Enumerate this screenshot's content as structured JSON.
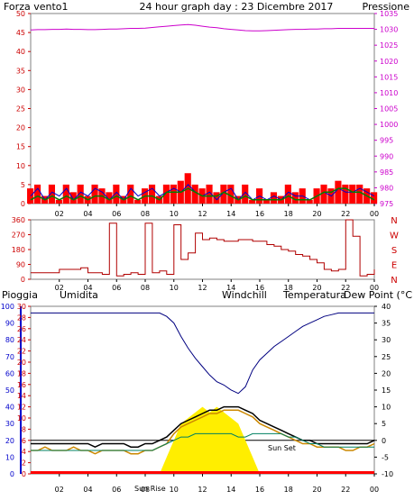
{
  "header": {
    "left_label": "Forza vento1",
    "title": "24 hour graph day : 23 Dicembre 2017",
    "right_label": "Pressione"
  },
  "colors": {
    "wind": "#ff0000",
    "gust": "#0000cc",
    "wind_avg": "#008000",
    "pressure": "#cc00cc",
    "direction": "#b00000",
    "axis_red": "#cc0000",
    "humidity": "#000080",
    "windchill": "#cc8800",
    "temperature": "#000000",
    "dewpoint": "#008060",
    "rain": "#ffee00",
    "rain_bar": "#ff0000",
    "frame": "#808080",
    "axis_blue": "#0000cc"
  },
  "x_ticks": [
    "02",
    "04",
    "06",
    "08",
    "10",
    "12",
    "14",
    "16",
    "18",
    "20",
    "22",
    "00"
  ],
  "chart_data": [
    {
      "type": "line",
      "name": "wind-pressure",
      "x_hours": [
        0,
        0.5,
        1,
        1.5,
        2,
        2.5,
        3,
        3.5,
        4,
        4.5,
        5,
        5.5,
        6,
        6.5,
        7,
        7.5,
        8,
        8.5,
        9,
        9.5,
        10,
        10.5,
        11,
        11.5,
        12,
        12.5,
        13,
        13.5,
        14,
        14.5,
        15,
        15.5,
        16,
        16.5,
        17,
        17.5,
        18,
        18.5,
        19,
        19.5,
        20,
        20.5,
        21,
        21.5,
        22,
        22.5,
        23,
        23.5,
        24
      ],
      "xticks": [
        "02",
        "04",
        "06",
        "08",
        "10",
        "12",
        "14",
        "16",
        "18",
        "20",
        "22",
        "00"
      ],
      "y_left": {
        "label": "Forza vento1",
        "min": 0,
        "max": 50,
        "ticks": [
          0,
          5,
          10,
          15,
          20,
          25,
          30,
          35,
          40,
          45,
          50
        ]
      },
      "y_right": {
        "label": "Pressione",
        "min": 975,
        "max": 1035,
        "ticks": [
          975,
          980,
          985,
          990,
          995,
          1000,
          1005,
          1010,
          1015,
          1020,
          1025,
          1030,
          1035
        ]
      },
      "series": [
        {
          "name": "wind",
          "values": [
            4,
            5,
            2,
            5,
            1,
            5,
            3,
            5,
            2,
            5,
            4,
            3,
            5,
            2,
            5,
            1,
            4,
            5,
            2,
            5,
            5,
            6,
            8,
            5,
            4,
            5,
            3,
            5,
            5,
            2,
            5,
            1,
            4,
            1,
            3,
            2,
            5,
            3,
            4,
            1,
            4,
            5,
            4,
            6,
            5,
            5,
            5,
            4,
            3
          ]
        },
        {
          "name": "gust",
          "values": [
            2,
            4,
            1,
            3,
            2,
            4,
            1,
            3,
            2,
            4,
            3,
            1,
            3,
            1,
            4,
            2,
            3,
            4,
            2,
            3,
            4,
            3,
            5,
            3,
            2,
            3,
            1,
            3,
            4,
            1,
            3,
            1,
            2,
            1,
            2,
            1,
            3,
            2,
            2,
            1,
            2,
            3,
            2,
            4,
            3,
            3,
            4,
            3,
            2
          ]
        },
        {
          "name": "wind_avg",
          "values": [
            1,
            2,
            1,
            2,
            1,
            2,
            1,
            2,
            1,
            2,
            2,
            1,
            2,
            1,
            2,
            1,
            2,
            2,
            1,
            3,
            3,
            3,
            4,
            3,
            2,
            2,
            2,
            3,
            2,
            1,
            2,
            1,
            1,
            1,
            1,
            1,
            2,
            1,
            1,
            1,
            2,
            3,
            3,
            4,
            4,
            3,
            3,
            2,
            1
          ]
        },
        {
          "name": "pressure",
          "values": [
            1029.8,
            1029.9,
            1029.9,
            1030.0,
            1030.0,
            1030.1,
            1030.0,
            1030.0,
            1029.9,
            1029.9,
            1030.0,
            1030.1,
            1030.1,
            1030.2,
            1030.3,
            1030.3,
            1030.4,
            1030.6,
            1030.8,
            1031.0,
            1031.2,
            1031.4,
            1031.5,
            1031.3,
            1031.0,
            1030.7,
            1030.5,
            1030.2,
            1030.0,
            1029.8,
            1029.6,
            1029.5,
            1029.5,
            1029.6,
            1029.7,
            1029.8,
            1029.9,
            1030.0,
            1030.0,
            1030.1,
            1030.1,
            1030.2,
            1030.2,
            1030.3,
            1030.3,
            1030.3,
            1030.3,
            1030.3,
            1030.3
          ]
        }
      ]
    },
    {
      "type": "line",
      "name": "wind-direction",
      "x_hours": [
        0,
        0.5,
        1,
        1.5,
        2,
        2.5,
        3,
        3.5,
        4,
        4.5,
        5,
        5.5,
        6,
        6.5,
        7,
        7.5,
        8,
        8.5,
        9,
        9.5,
        10,
        10.5,
        11,
        11.5,
        12,
        12.5,
        13,
        13.5,
        14,
        14.5,
        15,
        15.5,
        16,
        16.5,
        17,
        17.5,
        18,
        18.5,
        19,
        19.5,
        20,
        20.5,
        21,
        21.5,
        22,
        22.5,
        23,
        23.5,
        24
      ],
      "xticks": [
        "02",
        "04",
        "06",
        "08",
        "10",
        "12",
        "14",
        "16",
        "18",
        "20",
        "22",
        "00"
      ],
      "y_left": {
        "min": 0,
        "max": 360,
        "ticks": [
          0,
          90,
          180,
          270,
          360
        ]
      },
      "y_right_labels": [
        "N",
        "W",
        "S",
        "E",
        "N"
      ],
      "series": [
        {
          "name": "direction",
          "values": [
            40,
            40,
            40,
            40,
            60,
            60,
            60,
            70,
            40,
            40,
            30,
            340,
            20,
            30,
            40,
            30,
            340,
            40,
            50,
            30,
            330,
            120,
            160,
            280,
            240,
            250,
            240,
            230,
            230,
            240,
            240,
            230,
            230,
            210,
            200,
            180,
            170,
            150,
            140,
            120,
            100,
            60,
            50,
            60,
            360,
            260,
            20,
            30,
            60
          ]
        }
      ]
    },
    {
      "type": "line",
      "name": "temperature-humidity-rain",
      "x_hours": [
        0,
        0.5,
        1,
        1.5,
        2,
        2.5,
        3,
        3.5,
        4,
        4.5,
        5,
        5.5,
        6,
        6.5,
        7,
        7.5,
        8,
        8.5,
        9,
        9.5,
        10,
        10.5,
        11,
        11.5,
        12,
        12.5,
        13,
        13.5,
        14,
        14.5,
        15,
        15.5,
        16,
        16.5,
        17,
        17.5,
        18,
        18.5,
        19,
        19.5,
        20,
        20.5,
        21,
        21.5,
        22,
        22.5,
        23,
        23.5,
        24
      ],
      "xticks": [
        "02",
        "04",
        "06",
        "08",
        "10",
        "12",
        "14",
        "16",
        "18",
        "20",
        "22",
        "00"
      ],
      "legend": [
        "Pioggia",
        "Umidita",
        "Windchill",
        "Temperatura",
        "Dew Point (°C"
      ],
      "annotations": [
        "Sun Set",
        "Sun Rise"
      ],
      "y_left_rain": {
        "label": "Pioggia",
        "min": 0,
        "max": 30,
        "ticks": [
          0,
          2,
          4,
          6,
          8,
          10,
          12,
          14,
          16,
          18,
          20,
          22,
          24,
          26,
          28,
          30
        ]
      },
      "y_left_humidity": {
        "label": "Umidita",
        "min": 0,
        "max": 100,
        "ticks": [
          0,
          10,
          20,
          30,
          40,
          50,
          60,
          70,
          80,
          90,
          100
        ]
      },
      "y_right": {
        "label": "Dew Point (°C",
        "min": -10,
        "max": 40,
        "ticks": [
          -10,
          -5,
          0,
          5,
          10,
          15,
          20,
          25,
          30,
          35,
          40
        ]
      },
      "series": [
        {
          "name": "Umidita",
          "values": [
            96,
            96,
            96,
            96,
            96,
            96,
            96,
            96,
            96,
            96,
            96,
            96,
            96,
            96,
            96,
            96,
            96,
            96,
            96,
            94,
            90,
            82,
            75,
            69,
            64,
            59,
            55,
            53,
            50,
            48,
            52,
            62,
            68,
            72,
            76,
            79,
            82,
            85,
            88,
            90,
            92,
            94,
            95,
            96,
            96,
            96,
            96,
            96,
            96
          ]
        },
        {
          "name": "Windchill",
          "values": [
            -3,
            -3,
            -2,
            -3,
            -3,
            -3,
            -2,
            -3,
            -3,
            -4,
            -3,
            -3,
            -3,
            -3,
            -4,
            -4,
            -3,
            -3,
            -2,
            -1,
            2,
            4,
            5,
            6,
            7,
            8,
            8,
            9,
            9,
            9,
            8,
            7,
            5,
            4,
            3,
            2,
            1,
            0,
            -1,
            -1,
            -2,
            -2,
            -2,
            -2,
            -3,
            -3,
            -2,
            -2,
            -1
          ]
        },
        {
          "name": "Temperatura",
          "values": [
            -1,
            -1,
            -1,
            -1,
            -1,
            -1,
            -1,
            -1,
            -1,
            -2,
            -1,
            -1,
            -1,
            -1,
            -2,
            -2,
            -1,
            -1,
            0,
            1,
            3,
            5,
            6,
            7,
            8,
            9,
            9,
            10,
            10,
            10,
            9,
            8,
            6,
            5,
            4,
            3,
            2,
            1,
            0,
            0,
            -1,
            -1,
            -1,
            -1,
            -1,
            -1,
            -1,
            -1,
            0
          ]
        },
        {
          "name": "Dew Point (°C",
          "values": [
            -3,
            -3,
            -3,
            -3,
            -3,
            -3,
            -3,
            -3,
            -3,
            -3,
            -3,
            -3,
            -3,
            -3,
            -3,
            -3,
            -3,
            -3,
            -2,
            -1,
            0,
            1,
            1,
            2,
            2,
            2,
            2,
            2,
            2,
            1,
            1,
            2,
            2,
            2,
            2,
            2,
            1,
            1,
            0,
            -1,
            -1,
            -2,
            -2,
            -2,
            -2,
            -2,
            -2,
            -2,
            -2
          ]
        },
        {
          "name": "Pioggia",
          "values": [
            0,
            0,
            0,
            0,
            0,
            0,
            0,
            0,
            0,
            0,
            0,
            0,
            0,
            0,
            0,
            0,
            0,
            0,
            0,
            3,
            6,
            9,
            10,
            11,
            12,
            11,
            12,
            11,
            10,
            9,
            6,
            3,
            0,
            0,
            0,
            0,
            0,
            0,
            0,
            0,
            0,
            0,
            0,
            0,
            0,
            0,
            0,
            0,
            0
          ]
        }
      ]
    }
  ],
  "bottom": {
    "labels": [
      "Pioggia",
      "Umidita",
      "Windchill",
      "Temperatura",
      "Dew Point (°C"
    ],
    "sunset_label": "Sun Set",
    "sunrise_label": "Sun Rise"
  }
}
